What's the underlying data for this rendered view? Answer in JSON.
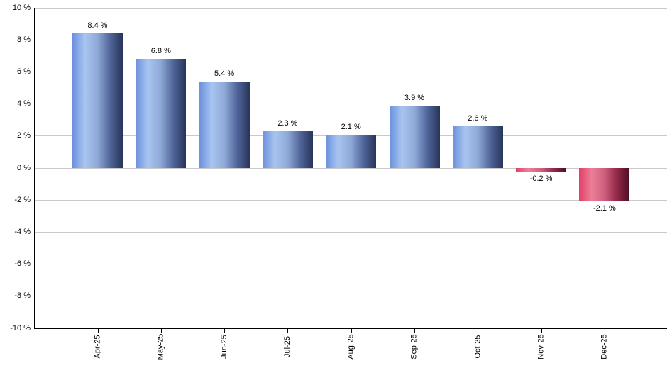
{
  "chart_data": {
    "type": "bar",
    "title": "",
    "xlabel": "",
    "ylabel": "",
    "categories": [
      "Apr-25",
      "May-25",
      "Jun-25",
      "Jul-25",
      "Aug-25",
      "Sep-25",
      "Oct-25",
      "Nov-25",
      "Dec-25"
    ],
    "values": [
      8.4,
      6.8,
      5.4,
      2.3,
      2.1,
      3.9,
      2.6,
      -0.2,
      -2.1
    ],
    "value_labels": [
      "8.4 %",
      "6.8 %",
      "5.4 %",
      "2.3 %",
      "2.1 %",
      "3.9 %",
      "2.6 %",
      "-0.2 %",
      "-2.1 %"
    ],
    "ylim": [
      -10,
      10
    ],
    "ytick_step": 2,
    "ytick_labels": [
      "10 %",
      "8 %",
      "6 %",
      "4 %",
      "2 %",
      "0 %",
      "-2 %",
      "-4 %",
      "-6 %",
      "-8 %",
      "-10 %"
    ],
    "grid": true,
    "legend": "none",
    "colors": {
      "background": "#ffffff",
      "gridline": "#c9c9c9",
      "axis": "#000000",
      "label_text": "#000000",
      "positive_gradient": [
        {
          "color": "#6a91dd",
          "stop": 0
        },
        {
          "color": "#a9c4f0",
          "stop": 25
        },
        {
          "color": "#8ea9d6",
          "stop": 50
        },
        {
          "color": "#50659a",
          "stop": 75
        },
        {
          "color": "#273459",
          "stop": 100
        }
      ],
      "negative_gradient": [
        {
          "color": "#e23e66",
          "stop": 0
        },
        {
          "color": "#ec8099",
          "stop": 25
        },
        {
          "color": "#cf5f7e",
          "stop": 50
        },
        {
          "color": "#93294a",
          "stop": 75
        },
        {
          "color": "#4d0f22",
          "stop": 100
        }
      ]
    }
  }
}
